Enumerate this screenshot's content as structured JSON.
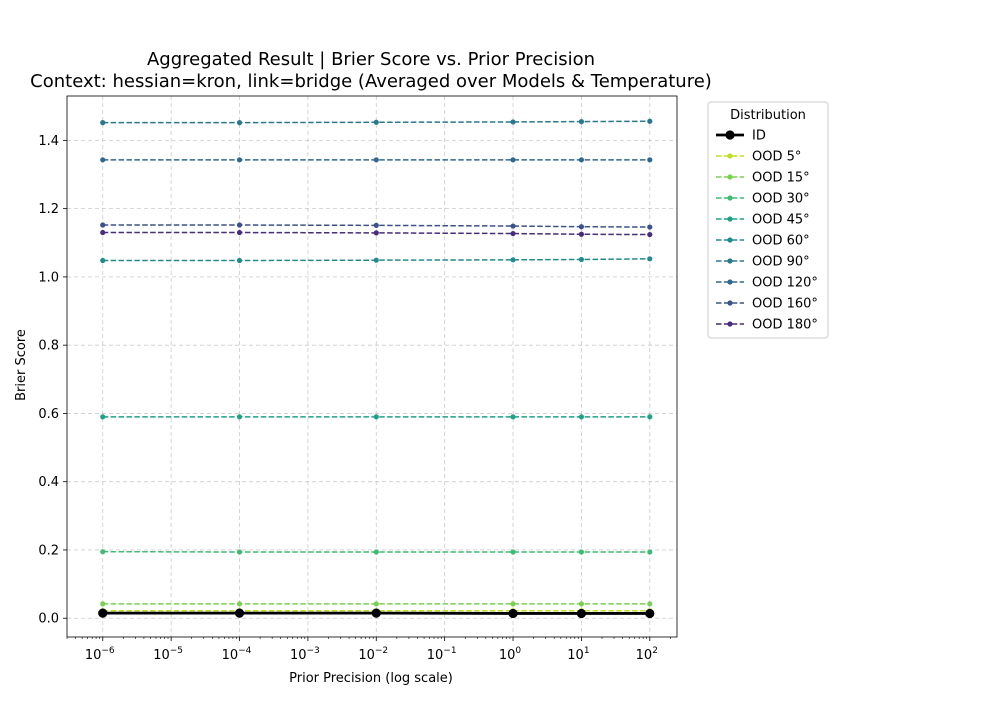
{
  "chart_data": {
    "type": "line",
    "title": "Aggregated Result | Brier Score vs. Prior Precision",
    "subtitle": "Context: hessian=kron, link=bridge (Averaged over Models & Temperature)",
    "xlabel": "Prior Precision (log scale)",
    "ylabel": "Brier Score",
    "xscale": "log",
    "x": [
      1e-06,
      0.0001,
      0.01,
      1,
      10,
      100
    ],
    "xlim": [
      3e-07,
      250
    ],
    "ylim": [
      -0.055,
      1.53
    ],
    "xticks": [
      {
        "exp": "-6"
      },
      {
        "exp": "-5"
      },
      {
        "exp": "-4"
      },
      {
        "exp": "-3"
      },
      {
        "exp": "-2"
      },
      {
        "exp": "-1"
      },
      {
        "exp": "0"
      },
      {
        "exp": "1"
      },
      {
        "exp": "2"
      }
    ],
    "xtick_base": "10",
    "yticks": [
      "0.0",
      "0.2",
      "0.4",
      "0.6",
      "0.8",
      "1.0",
      "1.2",
      "1.4"
    ],
    "grid": true,
    "legend": {
      "title": "Distribution",
      "position": "outside right, upper"
    },
    "series": [
      {
        "name": "ID",
        "color": "#000000",
        "style": "solid",
        "values": [
          0.015,
          0.015,
          0.015,
          0.014,
          0.014,
          0.014
        ]
      },
      {
        "name": "OOD 5°",
        "color": "#bddf26",
        "style": "dashed",
        "values": [
          0.022,
          0.022,
          0.022,
          0.022,
          0.022,
          0.022
        ]
      },
      {
        "name": "OOD 15°",
        "color": "#7ad151",
        "style": "dashed",
        "values": [
          0.042,
          0.042,
          0.042,
          0.042,
          0.042,
          0.042
        ]
      },
      {
        "name": "OOD 30°",
        "color": "#3fbc73",
        "style": "dashed",
        "values": [
          0.195,
          0.194,
          0.194,
          0.194,
          0.194,
          0.194
        ]
      },
      {
        "name": "OOD 45°",
        "color": "#1fa187",
        "style": "dashed",
        "values": [
          0.59,
          0.59,
          0.59,
          0.59,
          0.59,
          0.59
        ]
      },
      {
        "name": "OOD 60°",
        "color": "#228c8d",
        "style": "dashed",
        "values": [
          1.048,
          1.048,
          1.049,
          1.05,
          1.051,
          1.053
        ]
      },
      {
        "name": "OOD 90°",
        "color": "#2a788e",
        "style": "dashed",
        "values": [
          1.452,
          1.452,
          1.453,
          1.454,
          1.455,
          1.456
        ]
      },
      {
        "name": "OOD 120°",
        "color": "#31688e",
        "style": "dashed",
        "values": [
          1.343,
          1.343,
          1.343,
          1.343,
          1.343,
          1.343
        ]
      },
      {
        "name": "OOD 160°",
        "color": "#3b528b",
        "style": "dashed",
        "values": [
          1.152,
          1.152,
          1.151,
          1.149,
          1.147,
          1.146
        ]
      },
      {
        "name": "OOD 180°",
        "color": "#472d7b",
        "style": "dashed",
        "values": [
          1.13,
          1.13,
          1.129,
          1.127,
          1.125,
          1.124
        ]
      }
    ]
  }
}
